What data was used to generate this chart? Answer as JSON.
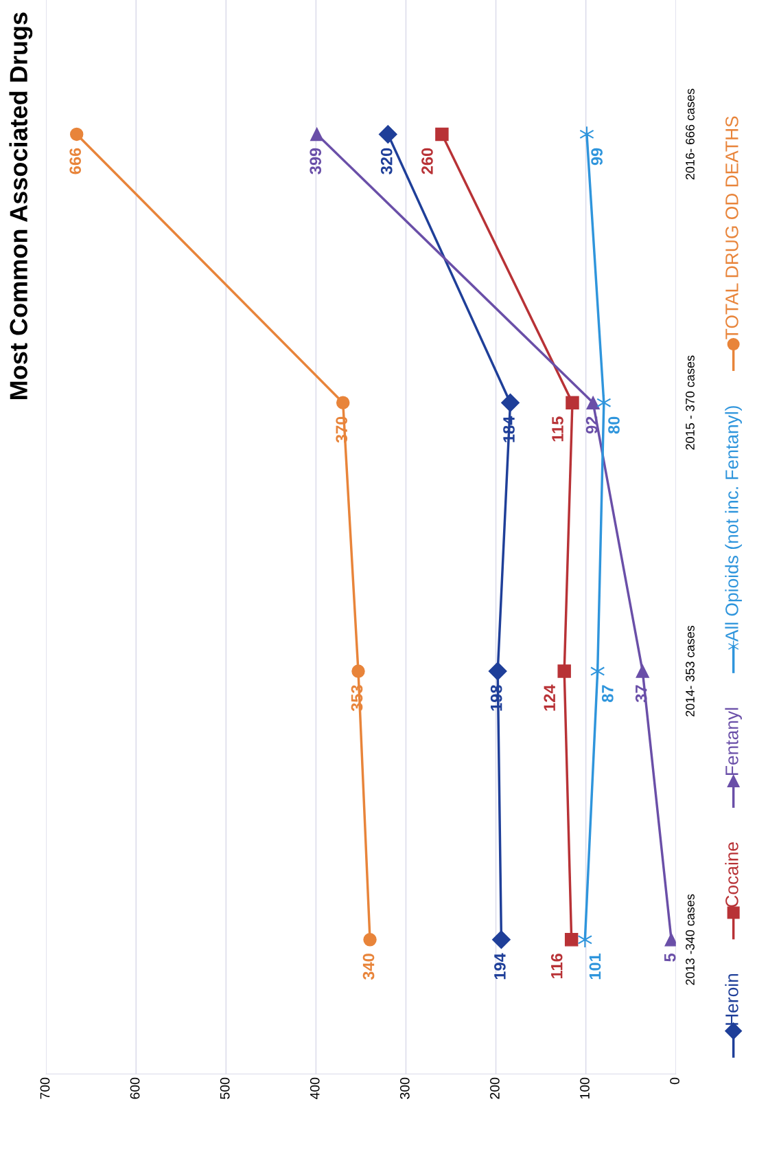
{
  "chart_data": {
    "type": "line",
    "title": "Most Common Associated Drugs",
    "orientation": "horizontal",
    "categories": [
      "2016- 666 cases",
      "2015 - 370 cases",
      "2014- 353 cases",
      "2013 -340 cases"
    ],
    "series": [
      {
        "name": "Heroin",
        "color": "#1f3f99",
        "marker": "diamond",
        "values": [
          320,
          184,
          198,
          194
        ]
      },
      {
        "name": "Cocaine",
        "color": "#b83236",
        "marker": "square",
        "values": [
          260,
          115,
          124,
          116
        ]
      },
      {
        "name": "Fentanyl",
        "color": "#6a4fa8",
        "marker": "triangle",
        "values": [
          399,
          92,
          37,
          5
        ]
      },
      {
        "name": "All Opioids (not inc. Fentanyl)",
        "color": "#2f95dc",
        "marker": "cross",
        "values": [
          99,
          80,
          87,
          101
        ]
      },
      {
        "name": "TOTAL DRUG OD DEATHS",
        "color": "#e8843a",
        "marker": "circle",
        "values": [
          666,
          370,
          353,
          340
        ]
      }
    ],
    "xlim": [
      700,
      0
    ],
    "xticks": [
      0,
      100,
      200,
      300,
      400,
      500,
      600,
      700
    ],
    "grid": "x",
    "legend": "bottom",
    "data_labels": true,
    "line_style": "solid"
  }
}
